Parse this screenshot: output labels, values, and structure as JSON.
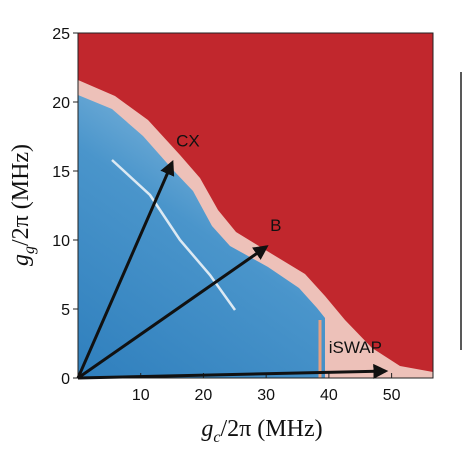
{
  "chart_data": {
    "type": "heatmap",
    "xlabel": {
      "var": "g",
      "sub": "c",
      "rest": "/2π  (MHz)"
    },
    "ylabel": {
      "var": "g",
      "sub": "g",
      "rest": "/2π  (MHz)"
    },
    "xlim": [
      0,
      56.6
    ],
    "ylim": [
      0,
      25
    ],
    "xticks": [
      10,
      20,
      30,
      40,
      50
    ],
    "yticks": [
      0,
      5,
      10,
      15,
      20,
      25
    ],
    "annotations": [
      {
        "text": "CX",
        "x": 15,
        "y": 15.6
      },
      {
        "text": "B",
        "x": 30,
        "y": 9.5
      },
      {
        "text": "iSWAP",
        "x": 49,
        "y": 0.5
      }
    ]
  }
}
